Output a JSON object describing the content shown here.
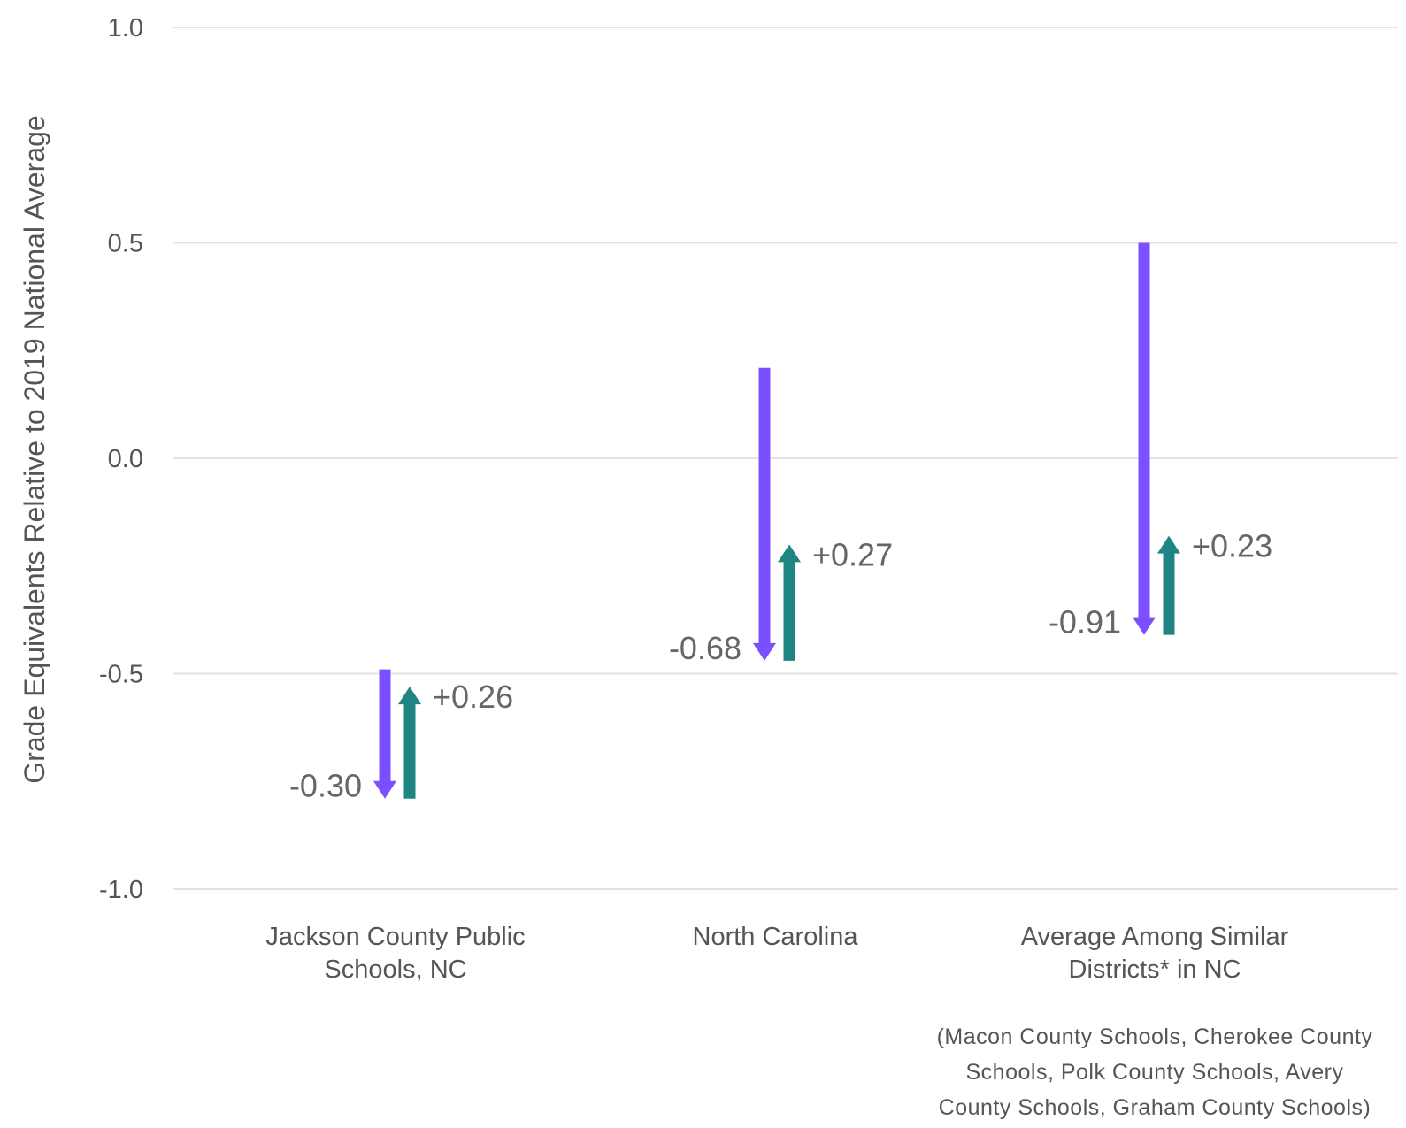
{
  "chart_data": {
    "type": "arrow",
    "ylabel": "Grade Equivalents Relative to 2019 National Average",
    "ylim": [
      -1.0,
      1.0
    ],
    "yticks": [
      "1.0",
      "0.5",
      "0.0",
      "-0.5",
      "-1.0"
    ],
    "grid": true,
    "colors": {
      "decline": "#7B4FFF",
      "recovery": "#1F8582",
      "gridline": "#E3E3E3",
      "text": "#555555"
    },
    "categories": [
      {
        "label_lines": [
          "Jackson County Public",
          "Schools, NC"
        ],
        "note_lines": [],
        "decline": {
          "start": -0.49,
          "end": -0.79,
          "label": "-0.30"
        },
        "recovery": {
          "start": -0.79,
          "end": -0.53,
          "label": "+0.26"
        }
      },
      {
        "label_lines": [
          "North Carolina"
        ],
        "note_lines": [],
        "decline": {
          "start": 0.21,
          "end": -0.47,
          "label": "-0.68"
        },
        "recovery": {
          "start": -0.47,
          "end": -0.2,
          "label": "+0.27"
        }
      },
      {
        "label_lines": [
          "Average Among Similar",
          "Districts* in NC"
        ],
        "note_lines": [
          "(Macon County Schools, Cherokee County",
          "Schools, Polk County Schools, Avery",
          "County Schools, Graham County Schools)"
        ],
        "decline": {
          "start": 0.5,
          "end": -0.41,
          "label": "-0.91"
        },
        "recovery": {
          "start": -0.41,
          "end": -0.18,
          "label": "+0.23"
        }
      }
    ]
  }
}
